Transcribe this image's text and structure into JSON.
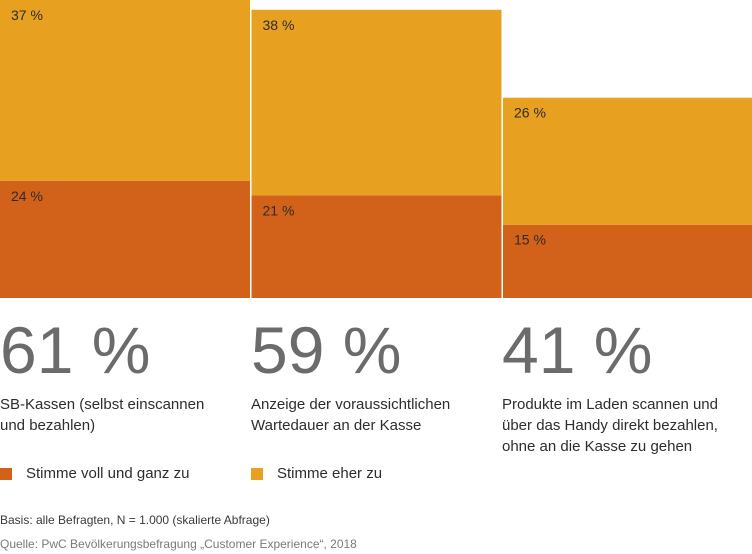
{
  "chart_data": {
    "type": "bar",
    "stacked": true,
    "categories": [
      "SB-Kassen (selbst einscannen und bezahlen)",
      "Anzeige der voraussichtlichen Wartedauer an der Kasse",
      "Produkte im Laden scannen und über das Handy direkt bezahlen, ohne an die Kasse zu gehen"
    ],
    "totals": [
      "61 %",
      "59 %",
      "41 %"
    ],
    "total_values": [
      61,
      59,
      41
    ],
    "series": [
      {
        "name": "Stimme voll und ganz zu",
        "values": [
          24,
          21,
          15
        ],
        "labels": [
          "24 %",
          "21 %",
          "15 %"
        ],
        "color": "#d2621a"
      },
      {
        "name": "Stimme eher zu",
        "values": [
          37,
          38,
          26
        ],
        "labels": [
          "37 %",
          "38 %",
          "26 %"
        ],
        "color": "#e8a020"
      }
    ],
    "ylim": [
      0,
      61
    ],
    "grid": false,
    "legend_position": "bottom-left"
  },
  "descriptions": [
    [
      "SB-Kassen (selbst einscannen",
      "und bezahlen)"
    ],
    [
      "Anzeige der voraussichtlichen",
      "Wartedauer an der Kasse"
    ],
    [
      "Produkte im Laden scannen und",
      "über das Handy direkt bezahlen,",
      "ohne an die Kasse zu gehen"
    ]
  ],
  "legend": {
    "items": [
      {
        "label": "Stimme voll und ganz zu",
        "color": "#d2621a"
      },
      {
        "label": "Stimme eher zu",
        "color": "#e8a020"
      }
    ]
  },
  "notes": {
    "base": "Basis: alle Befragten, N = 1.000 (skalierte Abfrage)",
    "source": "Quelle: PwC Bevölkerungsbefragung „Customer Experience“, 2018"
  }
}
